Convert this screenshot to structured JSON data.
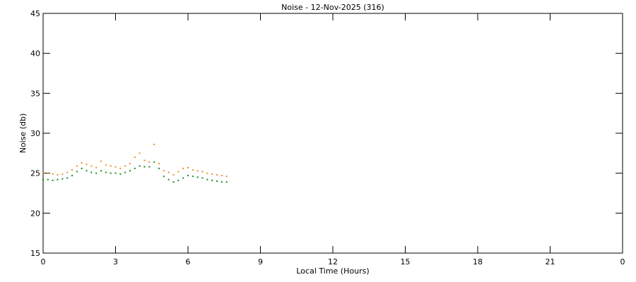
{
  "chart_data": {
    "type": "scatter",
    "title": "Noise - 12-Nov-2025 (316)",
    "xlabel": "Local Time (Hours)",
    "ylabel": "Noise (db)",
    "x": [
      0,
      0.2,
      0.4,
      0.6,
      0.8,
      1.0,
      1.2,
      1.4,
      1.6,
      1.8,
      2.0,
      2.2,
      2.4,
      2.6,
      2.8,
      3.0,
      3.2,
      3.4,
      3.6,
      3.8,
      4.0,
      4.2,
      4.4,
      4.6,
      4.8,
      5.0,
      5.2,
      5.4,
      5.6,
      5.8,
      6.0,
      6.2,
      6.4,
      6.6,
      6.8,
      7.0,
      7.2,
      7.4,
      7.6
    ],
    "series": [
      {
        "color": "#f08a24",
        "values": [
          25.0,
          25.0,
          24.9,
          24.8,
          24.9,
          25.1,
          25.4,
          25.9,
          26.3,
          26.1,
          25.9,
          25.7,
          26.5,
          26.0,
          25.9,
          25.8,
          25.6,
          25.9,
          26.2,
          27.0,
          27.5,
          26.6,
          26.4,
          28.6,
          26.2,
          25.3,
          25.1,
          24.8,
          25.2,
          25.6,
          25.7,
          25.4,
          25.3,
          25.2,
          25.0,
          24.9,
          24.8,
          24.7,
          24.6
        ]
      },
      {
        "color": "#1a8a1a",
        "values": [
          24.2,
          24.2,
          24.1,
          24.2,
          24.3,
          24.4,
          24.7,
          25.2,
          25.6,
          25.3,
          25.1,
          25.0,
          25.3,
          25.1,
          25.0,
          25.0,
          24.9,
          25.1,
          25.3,
          25.6,
          25.9,
          25.8,
          25.8,
          26.4,
          25.6,
          24.6,
          24.2,
          23.9,
          24.1,
          24.4,
          24.7,
          24.6,
          24.5,
          24.4,
          24.2,
          24.1,
          24.0,
          23.9,
          23.9
        ]
      }
    ],
    "xlim": [
      0,
      24
    ],
    "xticks": [
      0,
      3,
      6,
      9,
      12,
      15,
      18,
      21,
      {
        "value": 24,
        "label": "0"
      }
    ],
    "ylim": [
      15,
      45
    ],
    "yticks": [
      15,
      20,
      25,
      30,
      35,
      40,
      45
    ]
  }
}
